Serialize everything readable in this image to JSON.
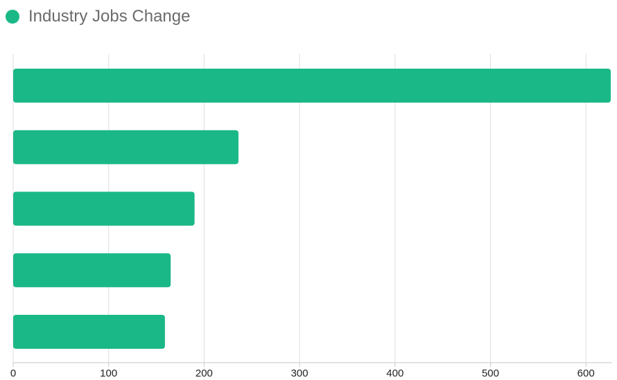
{
  "chart_data": {
    "type": "bar",
    "orientation": "horizontal",
    "series": [
      {
        "name": "Industry Jobs Change",
        "color": "#1bb887",
        "values": [
          626,
          236,
          190,
          165,
          159
        ]
      }
    ],
    "categories": [
      "",
      "",
      "",
      "",
      ""
    ],
    "xlim": [
      0,
      626
    ],
    "xticks": [
      0,
      100,
      200,
      300,
      400,
      500,
      600
    ],
    "grid": true,
    "legend_position": "top-left"
  }
}
